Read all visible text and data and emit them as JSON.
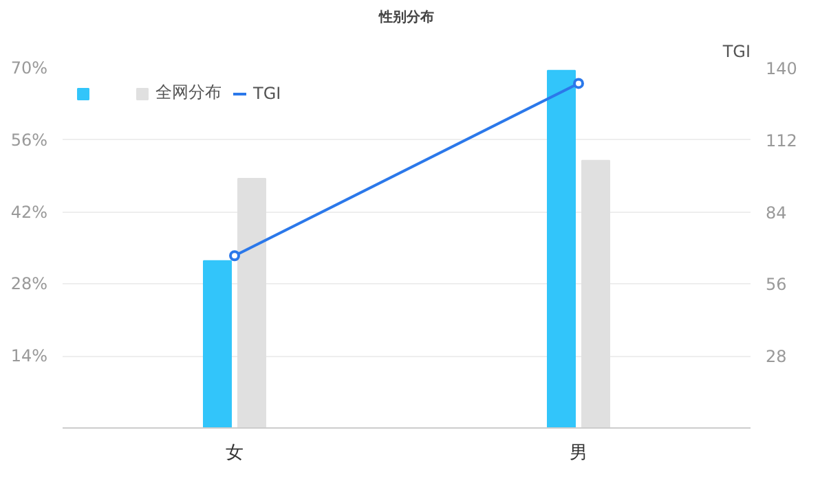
{
  "chart_data": {
    "type": "bar",
    "title": "性别分布",
    "categories": [
      "女",
      "男"
    ],
    "series": [
      {
        "color": "#32c5fa",
        "values": [
          32.5,
          69.5
        ]
      },
      {
        "name": "全网分布",
        "color": "#e0e0e0",
        "values": [
          48.5,
          52
        ]
      },
      {
        "name": "TGI",
        "type": "line",
        "axis": "y2",
        "color": "#2b78ea",
        "marker": "circle",
        "values": [
          67,
          134
        ]
      }
    ],
    "y2label": "TGI",
    "ylim": [
      0,
      70
    ],
    "yticks": [
      {
        "value": 14,
        "label": "14%"
      },
      {
        "value": 28,
        "label": "28%"
      },
      {
        "value": 42,
        "label": "42%"
      },
      {
        "value": 56,
        "label": "56%"
      },
      {
        "value": 70,
        "label": "70%"
      }
    ],
    "y2lim": [
      0,
      140
    ],
    "y2ticks": [
      28,
      56,
      84,
      112,
      140
    ],
    "grid": "y",
    "legend": "top left"
  }
}
